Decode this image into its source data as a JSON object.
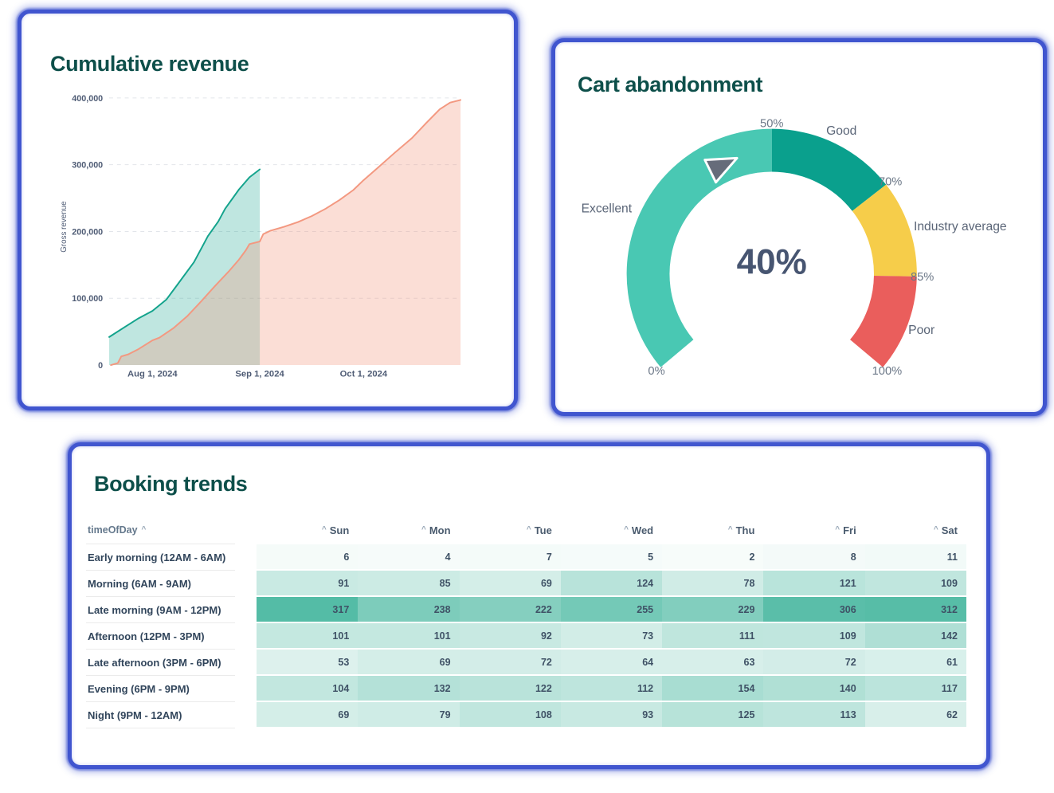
{
  "page": {
    "background_color": "#ffffff",
    "card_border_color": "#4055cf",
    "title_color": "#0d4f4a"
  },
  "chart_data": [
    {
      "id": "cumulative-revenue",
      "type": "area",
      "title": "Cumulative revenue",
      "xlabel": "",
      "ylabel": "Gross revenue",
      "ylim": [
        0,
        400000
      ],
      "yticks": [
        0,
        100000,
        200000,
        300000,
        400000
      ],
      "xticks": [
        {
          "day": 0,
          "label": "Aug 1, 2024"
        },
        {
          "day": 31,
          "label": "Sep 1, 2024"
        },
        {
          "day": 61,
          "label": "Oct 1, 2024"
        }
      ],
      "x_domain_days": [
        -12.5,
        89
      ],
      "grid": "horizontal-dashed",
      "series": [
        {
          "id": "series-1",
          "line_color": "#13a38c",
          "fill_color": "rgba(19,163,140,0.27)",
          "points": [
            [
              -12.5,
              42000
            ],
            [
              -8,
              57000
            ],
            [
              -4,
              70000
            ],
            [
              0,
              81000
            ],
            [
              4,
              98000
            ],
            [
              7,
              119000
            ],
            [
              12,
              154000
            ],
            [
              16,
              193000
            ],
            [
              19,
              215000
            ],
            [
              21,
              234000
            ],
            [
              25,
              263000
            ],
            [
              28,
              281000
            ],
            [
              31,
              293000
            ]
          ]
        },
        {
          "id": "series-2",
          "line_color": "#f39880",
          "fill_color": "rgba(243,152,128,0.32)",
          "points": [
            [
              -12,
              0
            ],
            [
              -10,
              3000
            ],
            [
              -9,
              13000
            ],
            [
              -7,
              16000
            ],
            [
              -4,
              24000
            ],
            [
              0,
              37000
            ],
            [
              2,
              41000
            ],
            [
              6,
              55000
            ],
            [
              10,
              73000
            ],
            [
              14,
              95000
            ],
            [
              18,
              118000
            ],
            [
              22,
              140000
            ],
            [
              25,
              158000
            ],
            [
              27,
              172000
            ],
            [
              28,
              181000
            ],
            [
              31,
              185000
            ],
            [
              32,
              196000
            ],
            [
              34,
              201000
            ],
            [
              38,
              207000
            ],
            [
              42,
              214000
            ],
            [
              46,
              223000
            ],
            [
              50,
              234000
            ],
            [
              54,
              247000
            ],
            [
              58,
              262000
            ],
            [
              61,
              277000
            ],
            [
              65,
              295000
            ],
            [
              70,
              318000
            ],
            [
              75,
              340000
            ],
            [
              79,
              362000
            ],
            [
              83,
              383000
            ],
            [
              86,
              393000
            ],
            [
              89,
              397000
            ]
          ]
        }
      ]
    },
    {
      "id": "cart-abandonment",
      "type": "gauge",
      "title": "Cart abandonment",
      "value": 40,
      "value_label": "40%",
      "min": 0,
      "max": 100,
      "angle_span_deg": [
        -130,
        130
      ],
      "segments": [
        {
          "label": "Excellent",
          "from": 0,
          "to": 50,
          "color": "#49c8b3"
        },
        {
          "label": "Good",
          "from": 50,
          "to": 70,
          "color": "#0aa08d"
        },
        {
          "label": "Industry average",
          "from": 70,
          "to": 85,
          "color": "#f6cd4a"
        },
        {
          "label": "Poor",
          "from": 85,
          "to": 100,
          "color": "#ea5e5c"
        }
      ],
      "ticks": [
        {
          "value": 0,
          "label": "0%"
        },
        {
          "value": 50,
          "label": "50%"
        },
        {
          "value": 70,
          "label": "70%"
        },
        {
          "value": 85,
          "label": "85%"
        },
        {
          "value": 100,
          "label": "100%"
        }
      ],
      "needle": {
        "value": 40,
        "color": "#666c7a"
      }
    },
    {
      "id": "booking-trends",
      "type": "heatmap",
      "title": "Booking trends",
      "row_header": "timeOfDay",
      "sort_icon": {
        "name": "chevron-up-icon",
        "glyph": "^"
      },
      "columns": [
        "Sun",
        "Mon",
        "Tue",
        "Wed",
        "Thu",
        "Fri",
        "Sat"
      ],
      "rows": [
        {
          "label": "Early morning (12AM - 6AM)",
          "values": [
            6,
            4,
            7,
            5,
            2,
            8,
            11
          ]
        },
        {
          "label": "Morning (6AM - 9AM)",
          "values": [
            91,
            85,
            69,
            124,
            78,
            121,
            109
          ]
        },
        {
          "label": "Late morning (9AM - 12PM)",
          "values": [
            317,
            238,
            222,
            255,
            229,
            306,
            312
          ]
        },
        {
          "label": "Afternoon (12PM - 3PM)",
          "values": [
            101,
            101,
            92,
            73,
            111,
            109,
            142
          ]
        },
        {
          "label": "Late afternoon (3PM - 6PM)",
          "values": [
            53,
            69,
            72,
            64,
            63,
            72,
            61
          ]
        },
        {
          "label": "Evening (6PM - 9PM)",
          "values": [
            104,
            132,
            122,
            112,
            154,
            140,
            117
          ]
        },
        {
          "label": "Night (9PM - 12AM)",
          "values": [
            69,
            79,
            108,
            93,
            125,
            113,
            62
          ]
        }
      ],
      "color_scale": {
        "min": 0,
        "max": 317,
        "min_color": "#f8fcfb",
        "max_color": "#54bca6"
      },
      "text_color": "#3f5266"
    }
  ]
}
